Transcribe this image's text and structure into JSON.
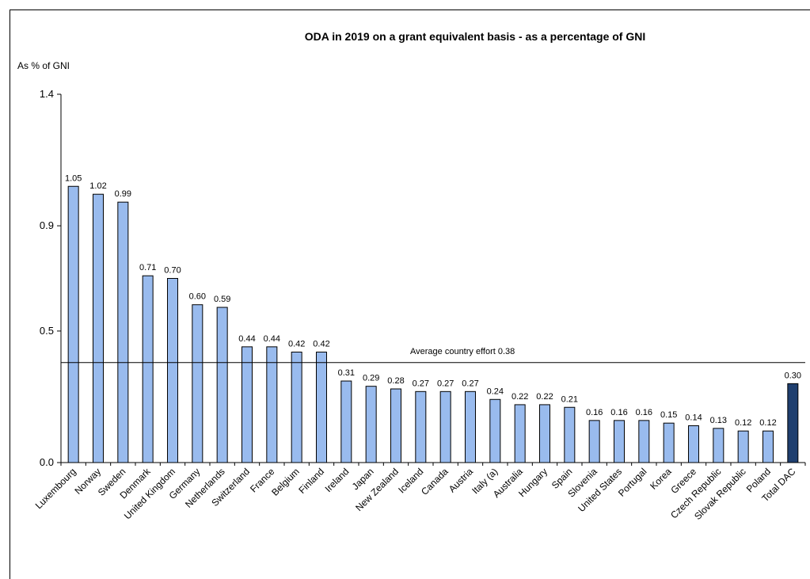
{
  "chart_data": {
    "type": "bar",
    "title": "ODA in 2019 on a grant equivalent  basis - as a percentage of GNI",
    "ylabel": "As % of GNI",
    "xlabel": "",
    "ylim": [
      0,
      1.4
    ],
    "yticks": [
      0.0,
      0.5,
      0.9,
      1.4
    ],
    "ytick_labels": [
      "0.0",
      "0.5",
      "0.9",
      "1.4"
    ],
    "grid": false,
    "categories": [
      "Luxembourg",
      "Norway",
      "Sweden",
      "Denmark",
      "United Kingdom",
      "Germany",
      "Netherlands",
      "Switzerland",
      "France",
      "Belgium",
      "Finland",
      "Ireland",
      "Japan",
      "New Zealand",
      "Iceland",
      "Canada",
      "Austria",
      "Italy (a)",
      "Australia",
      "Hungary",
      "Spain",
      "Slovenia",
      "United States",
      "Portugal",
      "Korea",
      "Greece",
      "Czech Republic",
      "Slovak Republic",
      "Poland",
      "Total DAC"
    ],
    "values": [
      1.05,
      1.02,
      0.99,
      0.71,
      0.7,
      0.6,
      0.59,
      0.44,
      0.44,
      0.42,
      0.42,
      0.31,
      0.29,
      0.28,
      0.27,
      0.27,
      0.27,
      0.24,
      0.22,
      0.22,
      0.21,
      0.16,
      0.16,
      0.16,
      0.15,
      0.14,
      0.13,
      0.12,
      0.12,
      0.3
    ],
    "value_labels": [
      "1.05",
      "1.02",
      "0.99",
      "0.71",
      "0.70",
      "0.60",
      "0.59",
      "0.44",
      "0.44",
      "0.42",
      "0.42",
      "0.31",
      "0.29",
      "0.28",
      "0.27",
      "0.27",
      "0.27",
      "0.24",
      "0.22",
      "0.22",
      "0.21",
      "0.16",
      "0.16",
      "0.16",
      "0.15",
      "0.14",
      "0.13",
      "0.12",
      "0.12",
      "0.30"
    ],
    "highlight_index": 29,
    "colors": {
      "bar": "#99BBEE",
      "highlight": "#1F3F6F",
      "stroke": "#000000"
    },
    "reference_line": {
      "value": 0.38,
      "label": "Average  country  effort  0.38"
    }
  }
}
